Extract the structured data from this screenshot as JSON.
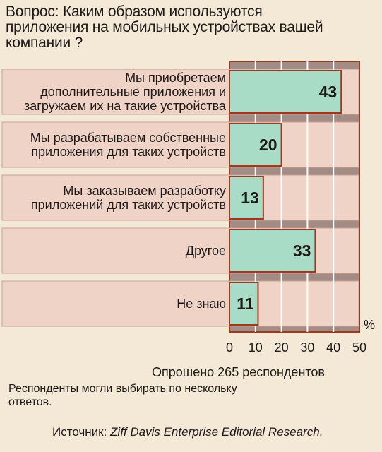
{
  "title": "Вопрос: Каким образом используются приложения на мобильных устройствах вашей компании ?",
  "chart_data": {
    "type": "bar",
    "orientation": "horizontal",
    "categories": [
      "Мы приобретаем дополнительные приложения и загружаем их на такие устройства",
      "Мы разрабатываем собственные приложения для таких устройств",
      "Мы заказываем разработку приложений для таких устройств",
      "Другое",
      "Не знаю"
    ],
    "category_lines": [
      [
        "Мы приобретаем",
        "дополнительные приложения и",
        "загружаем их на такие устройства"
      ],
      [
        "Мы разрабатываем собственные",
        "приложения для таких устройств"
      ],
      [
        "Мы заказываем разработку",
        "приложений для таких устройств"
      ],
      [
        "Другое"
      ],
      [
        "Не знаю"
      ]
    ],
    "values": [
      43,
      20,
      13,
      33,
      11
    ],
    "xlim": [
      0,
      50
    ],
    "xticks": [
      0,
      10,
      20,
      30,
      40,
      50
    ],
    "unit_label": "%",
    "grid": true,
    "colors": {
      "plot_bg": "#a38c86",
      "grid": "#ffffff",
      "bar_fill": "#a9dcc6",
      "bar_stroke": "#9b3a1e",
      "band_fill": "#efd3c6",
      "band_stroke": "#c9a093",
      "page_bg": "#f4e8d6"
    }
  },
  "notes": {
    "respondents": "Опрошено 265 респондентов",
    "multiple": "Респонденты могли выбирать по нескольку ответов.",
    "source_prefix": "Источник: ",
    "source_name": "Ziff Davis Enterprise Editorial Research."
  }
}
